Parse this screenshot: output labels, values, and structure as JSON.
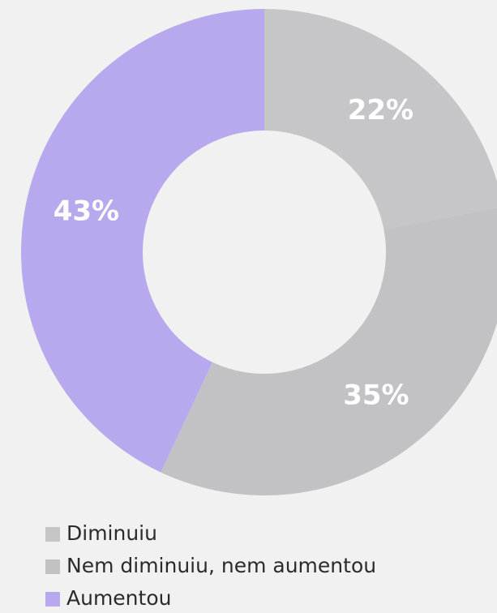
{
  "chart_data": {
    "type": "donut",
    "categories": [
      "Diminuiu",
      "Nem diminuiu, nem aumentou",
      "Aumentou"
    ],
    "values": [
      22,
      35,
      43
    ],
    "value_labels": [
      "22%",
      "35%",
      "43%"
    ],
    "colors": [
      "#c6c6c8",
      "#c2c2c4",
      "#b8a9ef"
    ],
    "legend": "bottom-left"
  }
}
